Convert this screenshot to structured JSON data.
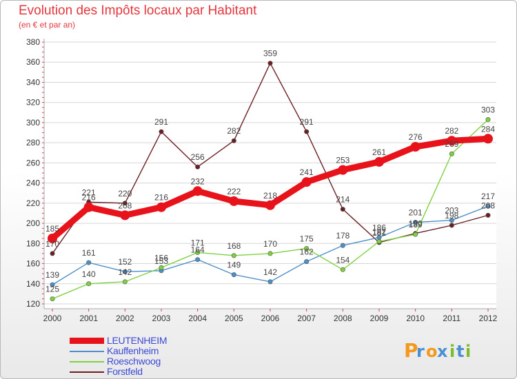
{
  "title": "Evolution des Impôts locaux par Habitant",
  "subtitle": "(en € et par an)",
  "logo": {
    "text": "Proxiti",
    "letters": [
      "P",
      "r",
      "o",
      "x",
      "i",
      "t",
      "i"
    ]
  },
  "chart_data": {
    "type": "line",
    "title": "Evolution des Impôts locaux par Habitant",
    "ylabel": "(en € et par an)",
    "xlabel": "",
    "x": [
      "2000",
      "2001",
      "2002",
      "2003",
      "2004",
      "2005",
      "2006",
      "2007",
      "2008",
      "2009",
      "2010",
      "2011",
      "2012"
    ],
    "ylim": [
      120,
      380
    ],
    "yticks": [
      "120",
      "140",
      "160",
      "180",
      "200",
      "220",
      "240",
      "260",
      "280",
      "300",
      "320",
      "340",
      "360",
      "380"
    ],
    "grid": true,
    "series": [
      {
        "name": "LEUTENHEIM",
        "color": "#e8121b",
        "values": [
          185,
          216,
          208,
          216,
          232,
          222,
          218,
          241,
          253,
          261,
          276,
          282,
          284
        ]
      },
      {
        "name": "Kauffenheim",
        "color": "#4d8fc9",
        "values": [
          139,
          161,
          152,
          153,
          164,
          149,
          142,
          162,
          178,
          186,
          201,
          203,
          217
        ]
      },
      {
        "name": "Roeschwoog",
        "color": "#7dd13f",
        "values": [
          125,
          140,
          142,
          156,
          171,
          168,
          170,
          175,
          154,
          182,
          189,
          269,
          303
        ]
      },
      {
        "name": "Forstfeld",
        "color": "#6b1f24",
        "values": [
          170,
          221,
          220,
          291,
          256,
          282,
          359,
          291,
          214,
          181,
          190,
          198,
          208
        ]
      }
    ],
    "labels": [
      {
        "series": 0,
        "text": [
          "185",
          "216",
          "208",
          "216",
          "232",
          "222",
          "218",
          "241",
          "253",
          "261",
          "276",
          "282",
          "284"
        ]
      },
      {
        "series": 1,
        "text": [
          "139",
          "161",
          "152",
          "153",
          "164",
          "149",
          "142",
          "162",
          "178",
          "186",
          "201",
          "203",
          "217"
        ]
      },
      {
        "series": 2,
        "text": [
          "125",
          "140",
          "142",
          "156",
          "171",
          "168",
          "170",
          "175",
          "154",
          "182",
          "189",
          "269",
          "303"
        ]
      },
      {
        "series": 3,
        "text": [
          "170",
          "221",
          "220",
          "291",
          "256",
          "282",
          "359",
          "291",
          "214",
          "181",
          "190",
          "198",
          "208"
        ]
      }
    ]
  }
}
